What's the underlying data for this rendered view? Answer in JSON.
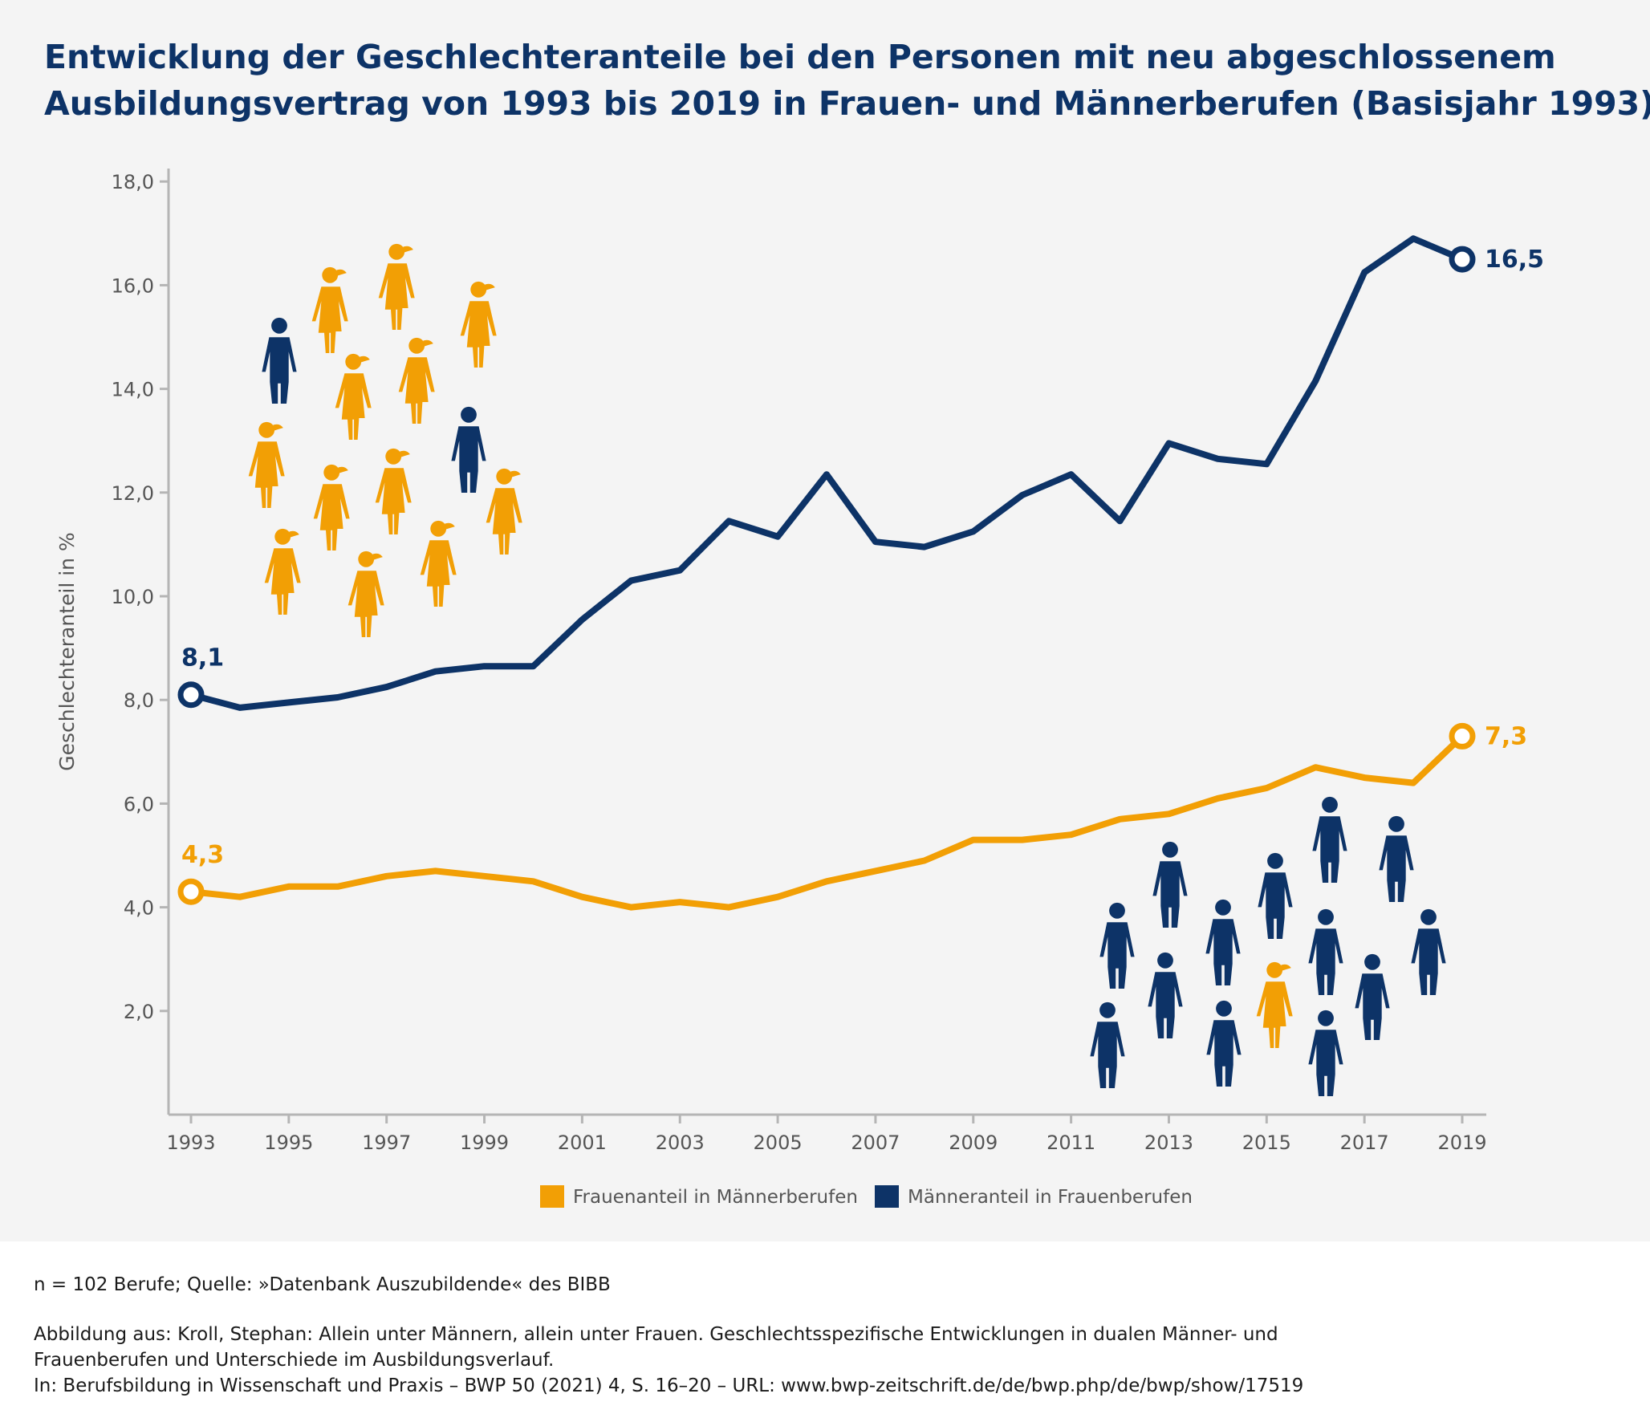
{
  "title": {
    "line1": "Entwicklung der Geschlechteranteile bei den Personen mit neu abgeschlossenem",
    "line2": "Ausbildungsvertrag von 1993 bis 2019 in Frauen- und Männerberufen (Basisjahr 1993)"
  },
  "colors": {
    "orange": "#f29f05",
    "navy": "#0d3367"
  },
  "icons": {
    "cluster_women_professions": "mostly-women-figures-with-few-men-icon",
    "cluster_men_professions": "mostly-men-figures-with-one-woman-icon"
  },
  "chart_data": {
    "type": "line",
    "ylabel": "Geschlechteranteil in %",
    "xlabel": "",
    "ylim": [
      0,
      18.5
    ],
    "yticks": [
      2,
      4,
      6,
      8,
      10,
      12,
      14,
      16,
      18
    ],
    "ytick_labels": [
      "2,0",
      "4,0",
      "6,0",
      "8,0",
      "10,0",
      "12,0",
      "14,0",
      "16,0",
      "18,0"
    ],
    "x": [
      1993,
      1994,
      1995,
      1996,
      1997,
      1998,
      1999,
      2000,
      2001,
      2002,
      2003,
      2004,
      2005,
      2006,
      2007,
      2008,
      2009,
      2010,
      2011,
      2012,
      2013,
      2014,
      2015,
      2016,
      2017,
      2018,
      2019
    ],
    "xticks": [
      1993,
      1995,
      1997,
      1999,
      2001,
      2003,
      2005,
      2007,
      2009,
      2011,
      2013,
      2015,
      2017,
      2019
    ],
    "xtick_labels": [
      "1993",
      "1995",
      "1997",
      "1999",
      "2001",
      "2003",
      "2005",
      "2007",
      "2009",
      "2011",
      "2013",
      "2015",
      "2017",
      "2019"
    ],
    "series": [
      {
        "name": "Männeranteil in Frauenberufen",
        "color": "#0d3367",
        "values": [
          8.1,
          7.85,
          7.95,
          8.05,
          8.25,
          8.55,
          8.65,
          8.65,
          9.55,
          10.3,
          10.5,
          11.45,
          11.15,
          12.35,
          11.05,
          10.95,
          11.25,
          11.95,
          12.35,
          11.45,
          12.95,
          12.65,
          12.55,
          14.15,
          16.25,
          16.9,
          16.5
        ],
        "start_label": "8,1",
        "end_label": "16,5"
      },
      {
        "name": "Frauenanteil in Männerberufen",
        "color": "#f29f05",
        "values": [
          4.3,
          4.2,
          4.4,
          4.4,
          4.6,
          4.7,
          4.6,
          4.5,
          4.2,
          4.0,
          4.1,
          4.0,
          4.2,
          4.5,
          4.7,
          4.9,
          5.3,
          5.3,
          5.4,
          5.7,
          5.8,
          6.1,
          6.3,
          6.7,
          6.5,
          6.4,
          7.3
        ],
        "start_label": "4,3",
        "end_label": "7,3"
      }
    ],
    "legend": {
      "placement": "bottom-center",
      "items": [
        "Frauenanteil in Männerberufen",
        "Männeranteil in Frauenberufen"
      ]
    }
  },
  "footer": {
    "note": "n = 102 Berufe; Quelle: »Datenbank Auszubildende« des BIBB",
    "citation_line1": "Abbildung aus: Kroll, Stephan: Allein unter Männern, allein unter Frauen. Geschlechtsspezifische Entwicklungen in dualen Männer- und",
    "citation_line2": "Frauenberufen und Unterschiede im Ausbildungsverlauf.",
    "citation_line3": "In: Berufsbildung in Wissenschaft und Praxis – BWP 50 (2021) 4, S. 16–20 – URL: www.bwp-zeitschrift.de/de/bwp.php/de/bwp/show/17519"
  }
}
